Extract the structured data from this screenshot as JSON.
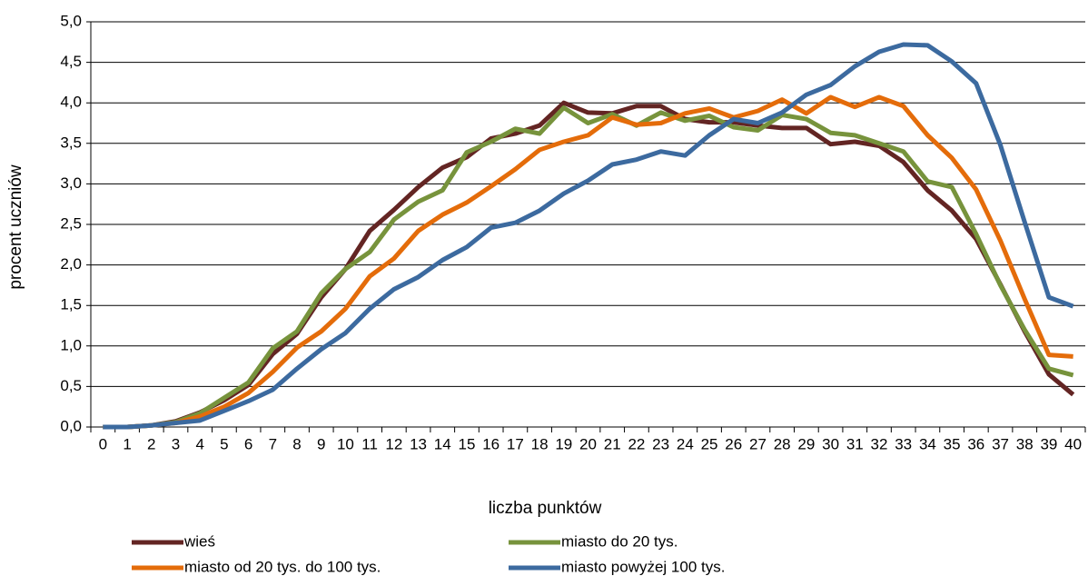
{
  "chart_data": {
    "type": "line",
    "y_label": "procent uczniów",
    "x_label": "liczba punktów",
    "categories": [
      "0",
      "1",
      "2",
      "3",
      "4",
      "5",
      "6",
      "7",
      "8",
      "9",
      "10",
      "11",
      "12",
      "13",
      "14",
      "15",
      "16",
      "17",
      "18",
      "19",
      "20",
      "21",
      "22",
      "23",
      "24",
      "25",
      "26",
      "27",
      "28",
      "29",
      "30",
      "31",
      "32",
      "33",
      "34",
      "35",
      "36",
      "37",
      "38",
      "39",
      "40"
    ],
    "ylim": [
      0,
      5
    ],
    "yticks": [
      {
        "value": 0,
        "label": "0,0"
      },
      {
        "value": 0.5,
        "label": "0,5"
      },
      {
        "value": 1,
        "label": "1,0"
      },
      {
        "value": 1.5,
        "label": "1,5"
      },
      {
        "value": 2,
        "label": "2,0"
      },
      {
        "value": 2.5,
        "label": "2,5"
      },
      {
        "value": 3,
        "label": "3,0"
      },
      {
        "value": 3.5,
        "label": "3,5"
      },
      {
        "value": 4,
        "label": "4,0"
      },
      {
        "value": 4.5,
        "label": "4,5"
      },
      {
        "value": 5,
        "label": "5,0"
      }
    ],
    "grid": true,
    "series": [
      {
        "name": "wieś",
        "color": "#632523",
        "values": [
          0,
          0,
          0.02,
          0.07,
          0.18,
          0.33,
          0.52,
          0.9,
          1.15,
          1.6,
          1.95,
          2.42,
          2.68,
          2.96,
          3.2,
          3.33,
          3.56,
          3.62,
          3.72,
          4.0,
          3.88,
          3.87,
          3.96,
          3.96,
          3.8,
          3.76,
          3.76,
          3.72,
          3.69,
          3.69,
          3.49,
          3.52,
          3.47,
          3.27,
          2.92,
          2.67,
          2.32,
          1.76,
          1.18,
          0.65,
          0.4
        ]
      },
      {
        "name": "miasto do 20 tys.",
        "color": "#77933c",
        "values": [
          0,
          0,
          0.02,
          0.06,
          0.17,
          0.36,
          0.55,
          0.97,
          1.18,
          1.65,
          1.95,
          2.16,
          2.56,
          2.78,
          2.92,
          3.39,
          3.52,
          3.68,
          3.62,
          3.94,
          3.75,
          3.86,
          3.72,
          3.88,
          3.78,
          3.84,
          3.7,
          3.66,
          3.85,
          3.8,
          3.63,
          3.6,
          3.5,
          3.4,
          3.03,
          2.96,
          2.38,
          1.75,
          1.2,
          0.72,
          0.64
        ]
      },
      {
        "name": "miasto od 20 tys. do 100 tys.",
        "color": "#e46c0a",
        "values": [
          0,
          0,
          0.02,
          0.05,
          0.13,
          0.25,
          0.42,
          0.68,
          0.98,
          1.18,
          1.46,
          1.86,
          2.08,
          2.42,
          2.62,
          2.77,
          2.97,
          3.18,
          3.42,
          3.52,
          3.6,
          3.82,
          3.73,
          3.75,
          3.87,
          3.93,
          3.82,
          3.9,
          4.04,
          3.87,
          4.07,
          3.95,
          4.07,
          3.96,
          3.6,
          3.32,
          2.93,
          2.3,
          1.58,
          0.89,
          0.87
        ]
      },
      {
        "name": "miasto powyżej 100 tys.",
        "color": "#3c6a9f",
        "values": [
          0,
          0,
          0.02,
          0.05,
          0.08,
          0.2,
          0.32,
          0.46,
          0.72,
          0.96,
          1.16,
          1.46,
          1.7,
          1.85,
          2.06,
          2.22,
          2.46,
          2.52,
          2.67,
          2.88,
          3.04,
          3.24,
          3.3,
          3.4,
          3.35,
          3.6,
          3.8,
          3.75,
          3.88,
          4.1,
          4.22,
          4.45,
          4.63,
          4.72,
          4.71,
          4.51,
          4.24,
          3.48,
          2.53,
          1.6,
          1.49
        ]
      }
    ]
  }
}
